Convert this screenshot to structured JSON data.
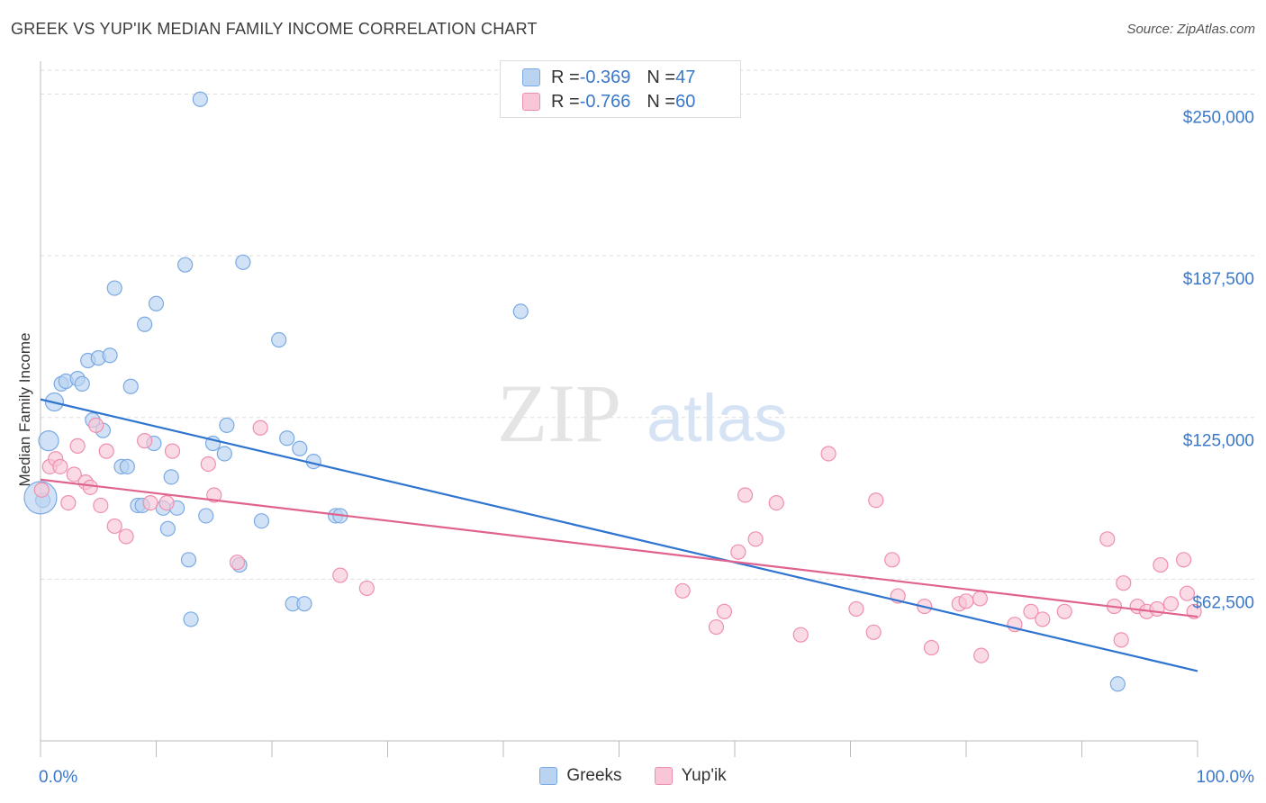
{
  "title": "GREEK VS YUP'IK MEDIAN FAMILY INCOME CORRELATION CHART",
  "source": "Source: ZipAtlas.com",
  "watermark": {
    "zip": "ZIP",
    "atlas": "atlas"
  },
  "legend_top": [
    {
      "r_label": "R = ",
      "r_value": "-0.369",
      "n_label": "N = ",
      "n_value": "47"
    },
    {
      "r_label": "R = ",
      "r_value": "-0.766",
      "n_label": "N = ",
      "n_value": "60"
    }
  ],
  "colors": {
    "greeks_fill": "#b9d3f1",
    "greeks_stroke": "#7aaae3",
    "greeks_line": "#2f74d0",
    "yupik_fill": "#f8c6d6",
    "yupik_stroke": "#ef8fb0",
    "yupik_line": "#e0638f",
    "axis_text": "#3a78c9",
    "grid": "#dddddd"
  },
  "chart_data": {
    "type": "scatter",
    "title": "GREEK VS YUP'IK MEDIAN FAMILY INCOME CORRELATION CHART",
    "xlabel": "",
    "ylabel": "Median Family Income",
    "xlim": [
      0,
      100
    ],
    "ylim": [
      0,
      262000
    ],
    "x_tick_labels": [
      "0.0%",
      "100.0%"
    ],
    "y_ticks": [
      62500,
      125000,
      187500,
      250000
    ],
    "y_tick_labels": [
      "$62,500",
      "$125,000",
      "$187,500",
      "$250,000"
    ],
    "grid": true,
    "legend": "bottom-center",
    "series": [
      {
        "name": "Greeks",
        "r": -0.369,
        "n": 47,
        "trend": [
          [
            0,
            132000
          ],
          [
            100,
            27000
          ]
        ],
        "points": [
          [
            13.8,
            248000
          ],
          [
            12.5,
            184000
          ],
          [
            17.5,
            185000
          ],
          [
            6.4,
            175000
          ],
          [
            10.0,
            169000
          ],
          [
            9.0,
            161000
          ],
          [
            20.6,
            155000
          ],
          [
            41.5,
            166000
          ],
          [
            1.8,
            138000
          ],
          [
            2.2,
            139000
          ],
          [
            3.2,
            140000
          ],
          [
            3.6,
            138000
          ],
          [
            4.1,
            147000
          ],
          [
            5.0,
            148000
          ],
          [
            6.0,
            149000
          ],
          [
            7.8,
            137000
          ],
          [
            1.2,
            131000
          ],
          [
            4.5,
            124000
          ],
          [
            5.4,
            120000
          ],
          [
            16.1,
            122000
          ],
          [
            0.7,
            116000
          ],
          [
            9.8,
            115000
          ],
          [
            14.9,
            115000
          ],
          [
            15.9,
            111000
          ],
          [
            21.3,
            117000
          ],
          [
            22.4,
            113000
          ],
          [
            23.6,
            108000
          ],
          [
            7.0,
            106000
          ],
          [
            7.5,
            106000
          ],
          [
            11.3,
            102000
          ],
          [
            8.4,
            91000
          ],
          [
            8.8,
            91000
          ],
          [
            10.6,
            90000
          ],
          [
            11.8,
            90000
          ],
          [
            14.3,
            87000
          ],
          [
            19.1,
            85000
          ],
          [
            11.0,
            82000
          ],
          [
            25.5,
            87000
          ],
          [
            25.9,
            87000
          ],
          [
            0.2,
            93000
          ],
          [
            12.8,
            70000
          ],
          [
            17.2,
            68000
          ],
          [
            21.8,
            53000
          ],
          [
            22.8,
            53000
          ],
          [
            13.0,
            47000
          ],
          [
            93.1,
            22000
          ],
          [
            0.0,
            94000
          ]
        ]
      },
      {
        "name": "Yup'ik",
        "r": -0.766,
        "n": 60,
        "trend": [
          [
            0,
            101000
          ],
          [
            100,
            48000
          ]
        ],
        "points": [
          [
            0.1,
            97000
          ],
          [
            0.8,
            106000
          ],
          [
            1.3,
            109000
          ],
          [
            1.7,
            106000
          ],
          [
            2.4,
            92000
          ],
          [
            2.9,
            103000
          ],
          [
            3.2,
            114000
          ],
          [
            3.9,
            100000
          ],
          [
            4.3,
            98000
          ],
          [
            4.8,
            122000
          ],
          [
            5.2,
            91000
          ],
          [
            5.7,
            112000
          ],
          [
            6.4,
            83000
          ],
          [
            7.4,
            79000
          ],
          [
            9.0,
            116000
          ],
          [
            9.5,
            92000
          ],
          [
            10.9,
            92000
          ],
          [
            11.4,
            112000
          ],
          [
            14.5,
            107000
          ],
          [
            15.0,
            95000
          ],
          [
            17.0,
            69000
          ],
          [
            19.0,
            121000
          ],
          [
            25.9,
            64000
          ],
          [
            28.2,
            59000
          ],
          [
            55.5,
            58000
          ],
          [
            58.4,
            44000
          ],
          [
            59.1,
            50000
          ],
          [
            60.3,
            73000
          ],
          [
            60.9,
            95000
          ],
          [
            61.8,
            78000
          ],
          [
            63.6,
            92000
          ],
          [
            65.7,
            41000
          ],
          [
            68.1,
            111000
          ],
          [
            70.5,
            51000
          ],
          [
            72.0,
            42000
          ],
          [
            72.2,
            93000
          ],
          [
            73.6,
            70000
          ],
          [
            74.1,
            56000
          ],
          [
            76.4,
            52000
          ],
          [
            77.0,
            36000
          ],
          [
            79.4,
            53000
          ],
          [
            80.0,
            54000
          ],
          [
            81.2,
            55000
          ],
          [
            81.3,
            33000
          ],
          [
            84.2,
            45000
          ],
          [
            85.6,
            50000
          ],
          [
            86.6,
            47000
          ],
          [
            88.5,
            50000
          ],
          [
            92.2,
            78000
          ],
          [
            92.8,
            52000
          ],
          [
            93.4,
            39000
          ],
          [
            93.6,
            61000
          ],
          [
            94.8,
            52000
          ],
          [
            95.6,
            50000
          ],
          [
            96.5,
            51000
          ],
          [
            96.8,
            68000
          ],
          [
            97.7,
            53000
          ],
          [
            98.8,
            70000
          ],
          [
            99.1,
            57000
          ],
          [
            99.7,
            50000
          ]
        ]
      }
    ]
  },
  "bottom_legend": [
    {
      "label": "Greeks"
    },
    {
      "label": "Yup'ik"
    }
  ]
}
